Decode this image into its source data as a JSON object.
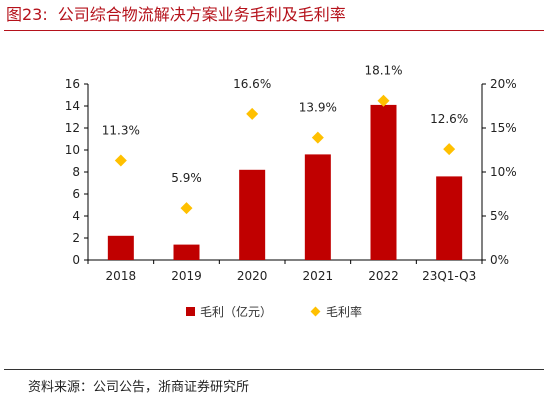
{
  "figure": {
    "number": "图23:",
    "title": "公司综合物流解决方案业务毛利及毛利率",
    "source": "资料来源：公司公告，浙商证券研究所"
  },
  "colors": {
    "title": "#B5121B",
    "bar": "#C00000",
    "marker": "#FFC000"
  },
  "chart_data": {
    "type": "bar",
    "categories": [
      "2018",
      "2019",
      "2020",
      "2021",
      "2022",
      "23Q1-Q3"
    ],
    "series": [
      {
        "name": "毛利（亿元）",
        "type": "bar",
        "axis": "left",
        "values": [
          2.2,
          1.4,
          8.2,
          9.6,
          14.1,
          7.6
        ]
      },
      {
        "name": "毛利率",
        "type": "scatter",
        "axis": "right",
        "values": [
          11.3,
          5.9,
          16.6,
          13.9,
          18.1,
          12.6
        ],
        "labels": [
          "11.3%",
          "5.9%",
          "16.6%",
          "13.9%",
          "18.1%",
          "12.6%"
        ]
      }
    ],
    "ylim": [
      0,
      16
    ],
    "yticks": [
      0,
      2,
      4,
      6,
      8,
      10,
      12,
      14,
      16
    ],
    "y2lim": [
      0,
      20
    ],
    "y2ticks": [
      "0%",
      "5%",
      "10%",
      "15%",
      "20%"
    ],
    "grid": false,
    "legend": "bottom"
  }
}
